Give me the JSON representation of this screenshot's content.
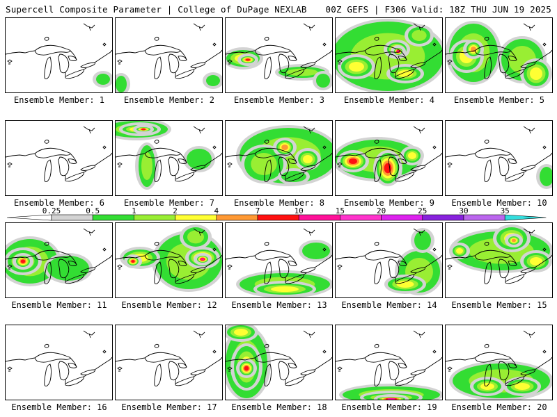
{
  "header": {
    "left": "Supercell Composite Parameter | College of DuPage NEXLAB",
    "right": "00Z GEFS | F306 Valid: 18Z THU JUN 19 2025"
  },
  "member_prefix": "Ensemble Member:",
  "colorbar": {
    "labels": [
      "0.25",
      "0.5",
      "1",
      "2",
      "4",
      "7",
      "10",
      "15",
      "20",
      "25",
      "30",
      "35"
    ],
    "colors": [
      "#d3d3d3",
      "#33dd33",
      "#99ee33",
      "#ffff33",
      "#ff9933",
      "#ff1111",
      "#ff1199",
      "#ff33cc",
      "#dd22ee",
      "#8822dd",
      "#bb66ee",
      "#33dddd"
    ]
  },
  "members": [
    {
      "label": "Ensemble Member: 1",
      "blobs": [
        [
          140,
          88,
          10,
          8,
          0
        ]
      ]
    },
    {
      "label": "Ensemble Member: 2",
      "blobs": [
        [
          8,
          95,
          8,
          12,
          0
        ],
        [
          140,
          90,
          10,
          8,
          0
        ]
      ]
    },
    {
      "label": "Ensemble Member: 3",
      "blobs": [
        [
          25,
          58,
          24,
          12,
          2
        ],
        [
          32,
          60,
          10,
          5,
          4
        ],
        [
          110,
          78,
          34,
          8,
          1
        ],
        [
          140,
          90,
          10,
          10,
          0
        ]
      ]
    },
    {
      "label": "Ensemble Member: 4",
      "blobs": [
        [
          75,
          55,
          80,
          50,
          1
        ],
        [
          30,
          70,
          22,
          14,
          2
        ],
        [
          88,
          45,
          14,
          10,
          3
        ],
        [
          90,
          48,
          6,
          5,
          5
        ],
        [
          100,
          80,
          22,
          10,
          2
        ],
        [
          120,
          25,
          16,
          12,
          1
        ]
      ]
    },
    {
      "label": "Ensemble Member: 5",
      "blobs": [
        [
          40,
          50,
          35,
          42,
          1
        ],
        [
          30,
          55,
          20,
          20,
          2
        ],
        [
          40,
          45,
          10,
          10,
          3
        ],
        [
          110,
          60,
          30,
          30,
          1
        ],
        [
          130,
          80,
          18,
          18,
          2
        ]
      ]
    },
    {
      "label": "Ensemble Member: 6",
      "blobs": []
    },
    {
      "label": "Ensemble Member: 7",
      "blobs": [
        [
          30,
          12,
          45,
          12,
          1
        ],
        [
          35,
          12,
          25,
          6,
          3
        ],
        [
          40,
          12,
          10,
          3,
          4
        ],
        [
          45,
          65,
          12,
          30,
          1
        ],
        [
          120,
          55,
          18,
          15,
          0
        ]
      ]
    },
    {
      "label": "Ensemble Member: 8",
      "blobs": [
        [
          90,
          50,
          70,
          40,
          1
        ],
        [
          55,
          62,
          28,
          24,
          1
        ],
        [
          85,
          38,
          12,
          10,
          3
        ],
        [
          118,
          55,
          14,
          12,
          2
        ],
        [
          98,
          80,
          18,
          8,
          0
        ]
      ]
    },
    {
      "label": "Ensemble Member: 9",
      "blobs": [
        [
          60,
          55,
          60,
          28,
          1
        ],
        [
          25,
          58,
          18,
          12,
          4
        ],
        [
          75,
          68,
          16,
          22,
          4
        ],
        [
          110,
          50,
          12,
          10,
          2
        ]
      ]
    },
    {
      "label": "Ensemble Member: 10",
      "blobs": [
        [
          145,
          80,
          10,
          14,
          0
        ]
      ]
    },
    {
      "label": "Ensemble Member: 11",
      "blobs": [
        [
          35,
          55,
          40,
          32,
          1
        ],
        [
          25,
          55,
          22,
          16,
          2
        ],
        [
          25,
          55,
          10,
          8,
          4
        ],
        [
          90,
          65,
          30,
          18,
          0
        ]
      ]
    },
    {
      "label": "Ensemble Member: 12",
      "blobs": [
        [
          105,
          55,
          48,
          40,
          1
        ],
        [
          125,
          50,
          20,
          12,
          4
        ],
        [
          125,
          52,
          8,
          5,
          5
        ],
        [
          35,
          50,
          24,
          12,
          2
        ],
        [
          25,
          55,
          8,
          6,
          4
        ],
        [
          115,
          20,
          18,
          14,
          1
        ]
      ]
    },
    {
      "label": "Ensemble Member: 13",
      "blobs": [
        [
          85,
          88,
          65,
          16,
          1
        ],
        [
          85,
          95,
          40,
          8,
          2
        ],
        [
          130,
          40,
          20,
          12,
          0
        ]
      ]
    },
    {
      "label": "Ensemble Member: 14",
      "blobs": [
        [
          120,
          70,
          30,
          30,
          1
        ],
        [
          100,
          88,
          25,
          10,
          2
        ],
        [
          125,
          25,
          12,
          14,
          0
        ]
      ]
    },
    {
      "label": "Ensemble Member: 15",
      "blobs": [
        [
          80,
          40,
          70,
          28,
          1
        ],
        [
          95,
          22,
          22,
          16,
          2
        ],
        [
          98,
          25,
          8,
          6,
          3
        ],
        [
          130,
          55,
          18,
          12,
          2
        ],
        [
          20,
          40,
          10,
          8,
          2
        ]
      ]
    },
    {
      "label": "Ensemble Member: 16",
      "blobs": []
    },
    {
      "label": "Ensemble Member: 17",
      "blobs": []
    },
    {
      "label": "Ensemble Member: 18",
      "blobs": [
        [
          30,
          55,
          30,
          50,
          1
        ],
        [
          30,
          60,
          18,
          30,
          2
        ],
        [
          30,
          62,
          10,
          10,
          4
        ],
        [
          22,
          10,
          20,
          10,
          2
        ]
      ]
    },
    {
      "label": "Ensemble Member: 19",
      "blobs": [
        [
          80,
          100,
          70,
          12,
          1
        ],
        [
          80,
          104,
          40,
          6,
          2
        ],
        [
          80,
          106,
          20,
          3,
          5
        ]
      ]
    },
    {
      "label": "Ensemble Member: 20",
      "blobs": [
        [
          80,
          80,
          70,
          25,
          1
        ],
        [
          60,
          88,
          20,
          10,
          2
        ],
        [
          110,
          88,
          22,
          10,
          2
        ]
      ]
    }
  ]
}
